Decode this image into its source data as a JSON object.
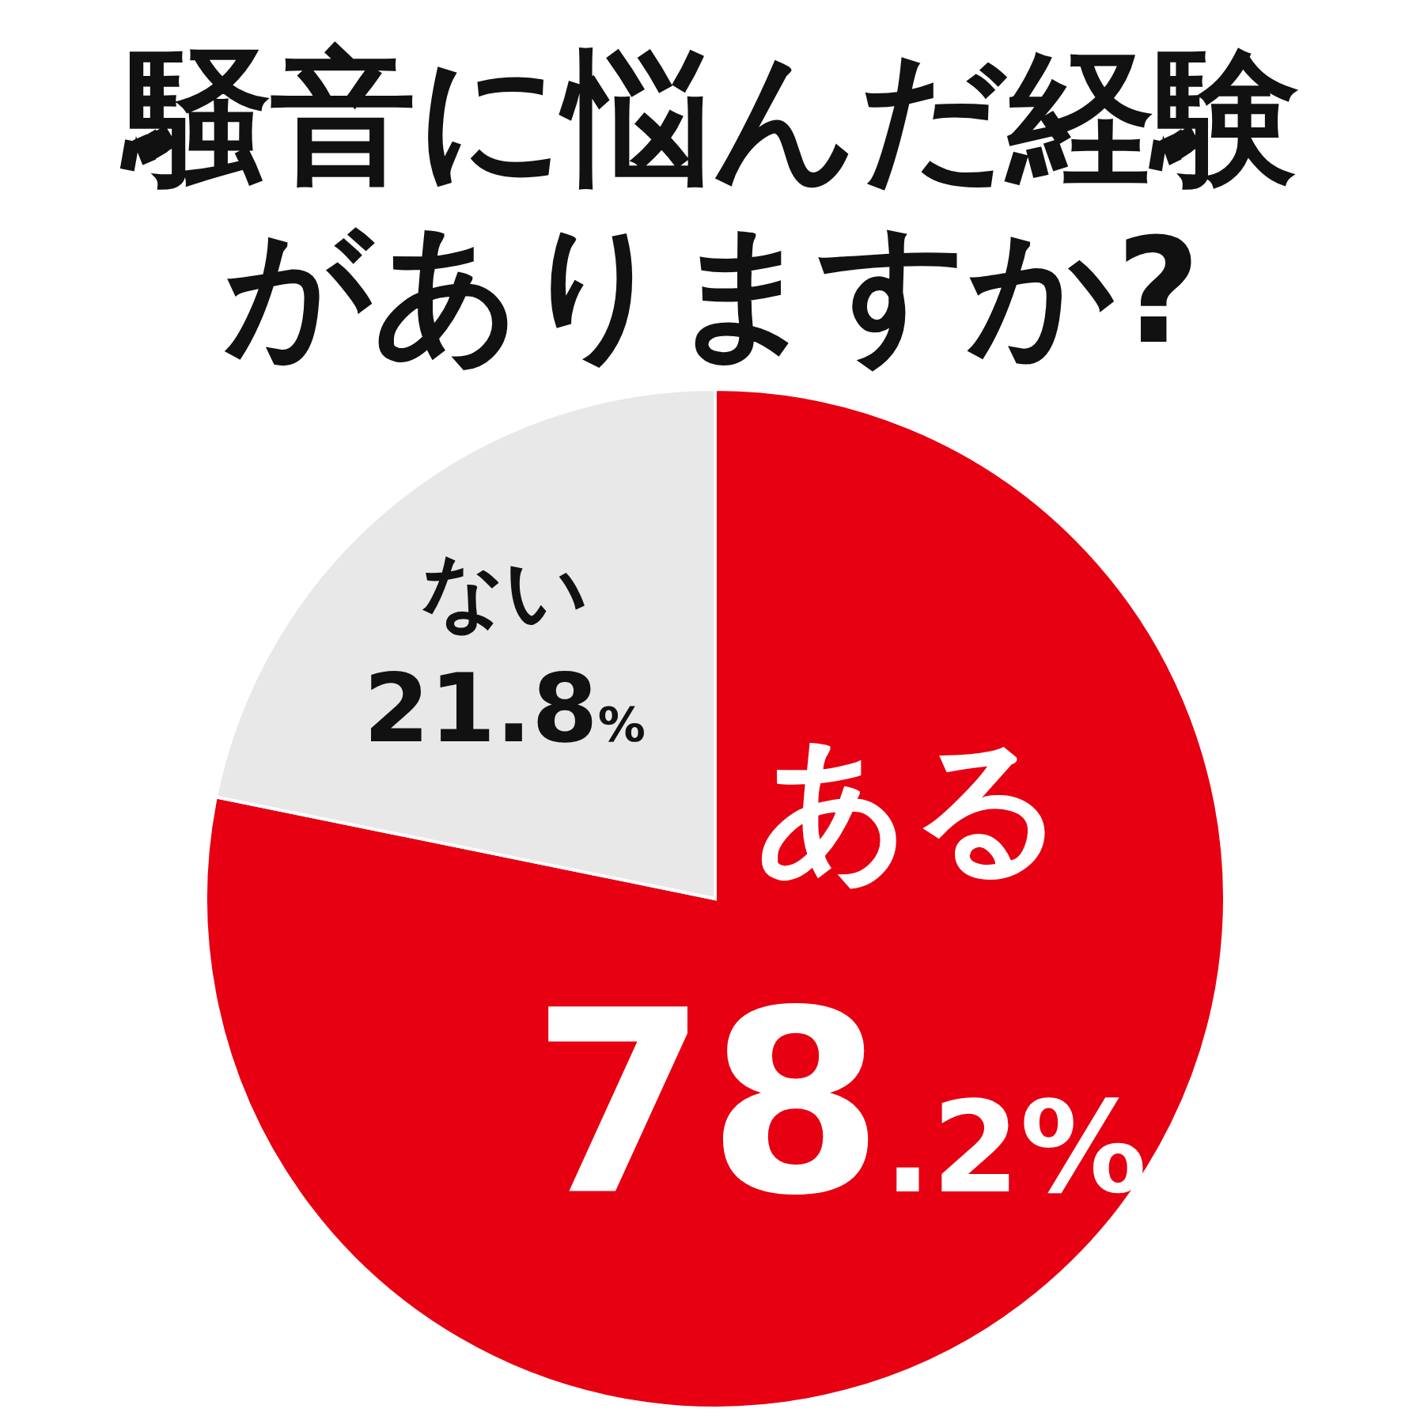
{
  "chart_data": {
    "type": "pie",
    "title": "騒音に悩んだ経験がありますか?",
    "categories": [
      "ある",
      "ない"
    ],
    "values": [
      78.2,
      21.8
    ],
    "colors": [
      "#e60012",
      "#e8e8e8"
    ],
    "value_labels": [
      "78.2%",
      "21.8%"
    ]
  }
}
